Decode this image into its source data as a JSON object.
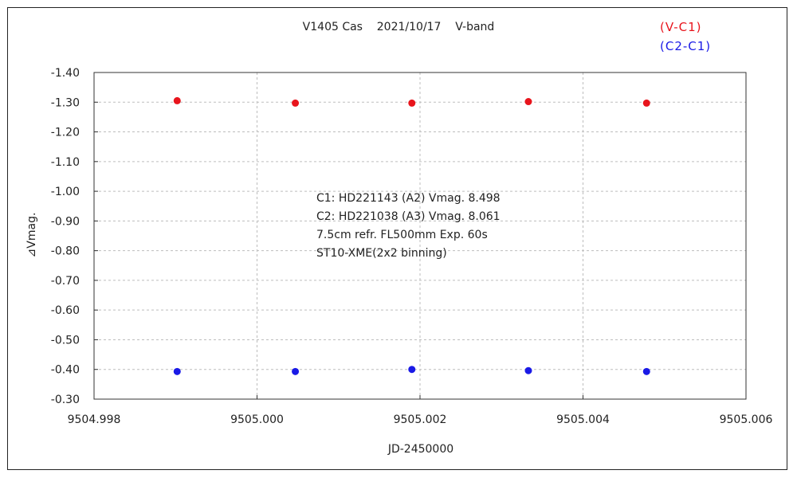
{
  "chart_data": {
    "type": "scatter",
    "title": "V1405 Cas    2021/10/17    V-band",
    "xlabel": "JD-2450000",
    "ylabel": "⊿Vmag.",
    "xlim": [
      9504.998,
      9505.006
    ],
    "ylim": [
      -1.4,
      -0.3
    ],
    "y_inverted": true,
    "grid": true,
    "x_ticks": [
      "9504.998",
      "9505.000",
      "9505.002",
      "9505.004",
      "9505.006"
    ],
    "y_ticks": [
      "-1.40",
      "-1.30",
      "-1.20",
      "-1.10",
      "-1.00",
      "-0.90",
      "-0.80",
      "-0.70",
      "-0.60",
      "-0.50",
      "-0.40",
      "-0.30"
    ],
    "legend_position": "top-right",
    "series": [
      {
        "name": "(V-C1)",
        "color": "#e8141c",
        "x": [
          9504.99902,
          9505.00047,
          9505.0019,
          9505.00333,
          9505.00478
        ],
        "y": [
          -1.305,
          -1.297,
          -1.297,
          -1.302,
          -1.297
        ]
      },
      {
        "name": "(C2-C1)",
        "color": "#1a1ae6",
        "x": [
          9504.99902,
          9505.00047,
          9505.0019,
          9505.00333,
          9505.00478
        ],
        "y": [
          -0.393,
          -0.393,
          -0.4,
          -0.396,
          -0.393
        ]
      }
    ],
    "annotations": [
      "C1: HD221143 (A2) Vmag. 8.498",
      "C2: HD221038 (A3) Vmag. 8.061",
      "7.5cm refr. FL500mm Exp. 60s",
      "ST10-XME(2x2 binning)"
    ]
  }
}
